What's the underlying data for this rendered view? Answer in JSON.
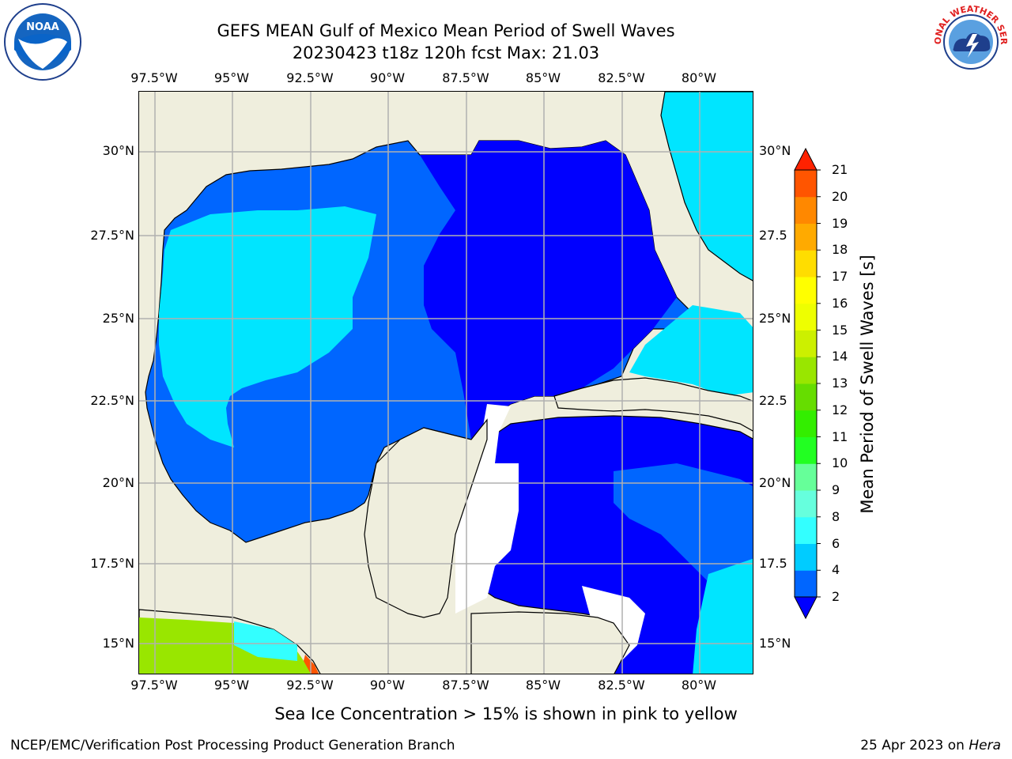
{
  "title_line1": "GEFS MEAN Gulf of Mexico Mean Period of Swell Waves",
  "title_line2": "20230423 t18z 120h fcst   Max: 21.03",
  "lon_labels": [
    "97.5°W",
    "95°W",
    "92.5°W",
    "90°W",
    "87.5°W",
    "85°W",
    "82.5°W",
    "80°W"
  ],
  "lat_labels_left": [
    "30°N",
    "27.5°N",
    "25°N",
    "22.5°N",
    "20°N",
    "17.5°N",
    "15°N"
  ],
  "lat_labels_right": [
    "30°N",
    "27.5",
    "25°N",
    "22.5",
    "20°N",
    "17.5",
    "15°N"
  ],
  "colorbar": {
    "label": "Mean Period of Swell Waves [s]",
    "ticks": [
      "2",
      "4",
      "6",
      "8",
      "9",
      "10",
      "11",
      "12",
      "13",
      "14",
      "15",
      "16",
      "17",
      "18",
      "19",
      "20",
      "21"
    ],
    "colors": [
      "#0000ff",
      "#0066ff",
      "#00ccff",
      "#33ffff",
      "#66ffdd",
      "#66ff99",
      "#22ff22",
      "#33ee00",
      "#66dd00",
      "#99e600",
      "#ccf000",
      "#eeff00",
      "#ffff00",
      "#ffdd00",
      "#ffaa00",
      "#ff8800",
      "#ff5500",
      "#ff2200"
    ],
    "extend": "both"
  },
  "colors": {
    "land": "#efeedd",
    "grid": "#b0b0b0",
    "coast": "#000000"
  },
  "footnote": "Sea Ice Concentration > 15% is shown in pink to yellow",
  "credit": "NCEP/EMC/Verification Post Processing Product Generation Branch",
  "date_prefix": "25 Apr 2023 on ",
  "date_machine": "Hera",
  "logos": {
    "left": "NOAA",
    "right": "NATIONAL WEATHER SERVICE"
  }
}
